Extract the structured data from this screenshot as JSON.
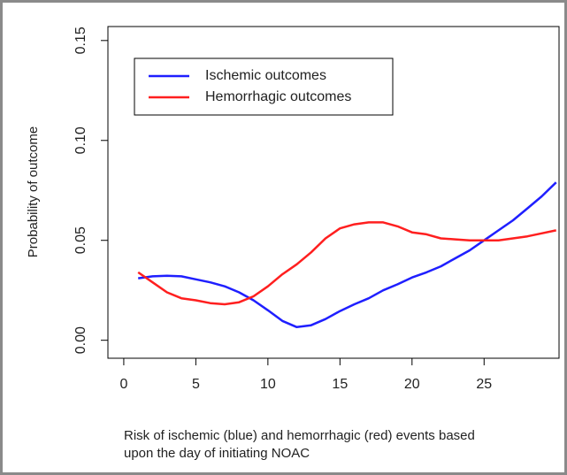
{
  "chart_data": {
    "type": "line",
    "y_label": "Probability of outcome",
    "caption_lines": [
      "Risk of ischemic (blue) and hemorrhagic (red) events based",
      "upon the day of initiating NOAC"
    ],
    "x": [
      1,
      2,
      3,
      4,
      5,
      6,
      7,
      8,
      9,
      10,
      11,
      12,
      13,
      14,
      15,
      16,
      17,
      18,
      19,
      20,
      21,
      22,
      23,
      24,
      25,
      26,
      27,
      28,
      29,
      30
    ],
    "series": [
      {
        "name": "Ischemic outcomes",
        "color": "#1f1fff",
        "values": [
          0.031,
          0.032,
          0.0323,
          0.032,
          0.0305,
          0.029,
          0.027,
          0.024,
          0.02,
          0.015,
          0.0097,
          0.0066,
          0.0075,
          0.0106,
          0.0146,
          0.018,
          0.021,
          0.025,
          0.028,
          0.0314,
          0.034,
          0.037,
          0.041,
          0.045,
          0.05,
          0.055,
          0.06,
          0.066,
          0.072,
          0.079
        ]
      },
      {
        "name": "Hemorrhagic outcomes",
        "color": "#ff1f1f",
        "values": [
          0.034,
          0.029,
          0.024,
          0.021,
          0.02,
          0.0186,
          0.018,
          0.019,
          0.022,
          0.027,
          0.033,
          0.038,
          0.044,
          0.051,
          0.056,
          0.058,
          0.059,
          0.059,
          0.057,
          0.054,
          0.053,
          0.051,
          0.0505,
          0.05,
          0.05,
          0.05,
          0.051,
          0.052,
          0.0535,
          0.055
        ]
      }
    ],
    "xlim": [
      -1.1,
      30.2
    ],
    "ylim": [
      -0.009,
      0.157
    ],
    "xticks": [
      0,
      5,
      10,
      15,
      20,
      25
    ],
    "yticks": [
      {
        "value": 0,
        "label": "0.00"
      },
      {
        "value": 0.05,
        "label": "0.05"
      },
      {
        "value": 0.1,
        "label": "0.10"
      },
      {
        "value": 0.15,
        "label": "0.15"
      }
    ],
    "legend": "top-left"
  }
}
